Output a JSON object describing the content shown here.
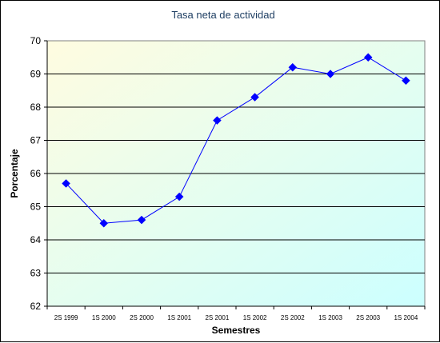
{
  "chart_data": {
    "type": "line",
    "title": "Tasa neta de actividad",
    "xlabel": "Semestres",
    "ylabel": "Porcentaje",
    "categories": [
      "2S 1999",
      "1S 2000",
      "2S 2000",
      "1S 2001",
      "2S 2001",
      "1S 2002",
      "2S 2002",
      "1S 2003",
      "2S 2003",
      "1S 2004"
    ],
    "series": [
      {
        "values": [
          65.7,
          64.5,
          64.6,
          65.3,
          67.6,
          68.3,
          69.2,
          69.0,
          69.5,
          68.8
        ]
      }
    ],
    "ylim": [
      62,
      70
    ],
    "yticks": [
      "62",
      "63",
      "64",
      "65",
      "66",
      "67",
      "68",
      "69",
      "70"
    ],
    "grid": true,
    "legend": "none",
    "colors": {
      "line": "#0000ff",
      "marker": "#0000ff",
      "grid": "#000000",
      "title": "#1f3f63",
      "plot_bg_start": "#fffce0",
      "plot_bg_end": "#ccffff"
    }
  }
}
